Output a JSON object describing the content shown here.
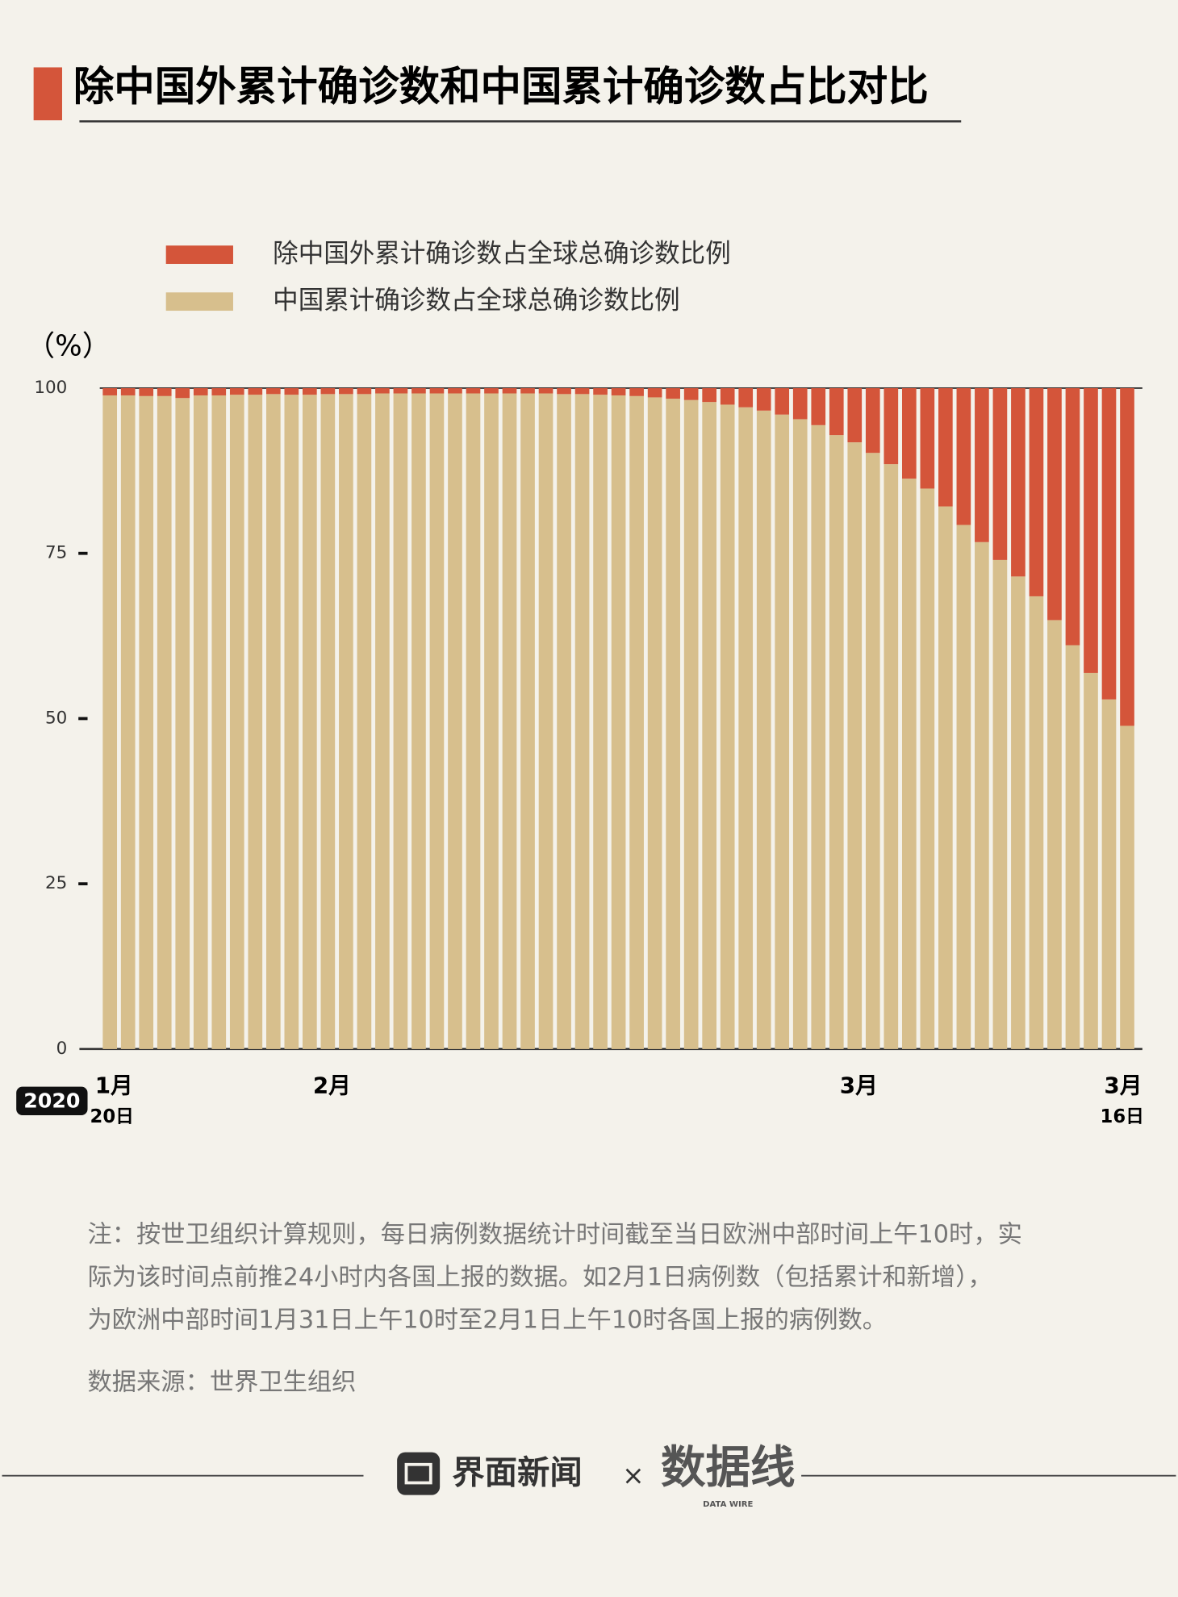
{
  "chart_data": {
    "type": "stacked_bar",
    "title": "除中国外累计确诊数和中国累计确诊数占比对比",
    "y_label": "（%）",
    "year_label": "2020",
    "categories": [
      "1月",
      null,
      null,
      null,
      null,
      null,
      null,
      null,
      null,
      null,
      null,
      null,
      "2月",
      null,
      null,
      null,
      null,
      null,
      null,
      null,
      null,
      null,
      null,
      null,
      null,
      null,
      null,
      null,
      null,
      null,
      null,
      null,
      null,
      null,
      null,
      null,
      null,
      null,
      null,
      null,
      null,
      "3月",
      null,
      null,
      null,
      null,
      null,
      null,
      null,
      null,
      null,
      null,
      null,
      null,
      null,
      null,
      "3月"
    ],
    "category_sublabels": [
      "20日",
      null,
      null,
      null,
      null,
      null,
      null,
      null,
      null,
      null,
      null,
      null,
      null,
      null,
      null,
      null,
      null,
      null,
      null,
      null,
      null,
      null,
      null,
      null,
      null,
      null,
      null,
      null,
      null,
      null,
      null,
      null,
      null,
      null,
      null,
      null,
      null,
      null,
      null,
      null,
      null,
      null,
      null,
      null,
      null,
      null,
      null,
      null,
      null,
      null,
      null,
      null,
      null,
      null,
      null,
      null,
      "16日"
    ],
    "series": [
      {
        "name": "除中国外累计确诊数占全球总确诊数比例",
        "color": "#d4553a",
        "values": [
          1.1,
          1.1,
          1.2,
          1.2,
          1.5,
          1.1,
          1.1,
          1.0,
          1.0,
          0.9,
          1.0,
          1.0,
          0.9,
          0.9,
          0.9,
          0.8,
          0.8,
          0.8,
          0.8,
          0.8,
          0.8,
          0.8,
          0.8,
          0.8,
          0.8,
          0.9,
          0.9,
          1.0,
          1.1,
          1.2,
          1.4,
          1.6,
          1.8,
          2.1,
          2.5,
          2.9,
          3.4,
          4.0,
          4.7,
          5.6,
          7.1,
          8.2,
          9.8,
          11.5,
          13.7,
          15.2,
          17.9,
          20.7,
          23.3,
          26.0,
          28.5,
          31.5,
          35.1,
          38.9,
          43.1,
          47.1,
          51.1
        ]
      },
      {
        "name": "中国累计确诊数占全球总确诊数比例",
        "color": "#d7bf8d",
        "values": [
          98.9,
          98.9,
          98.8,
          98.8,
          98.5,
          98.9,
          98.9,
          99.0,
          99.0,
          99.1,
          99.0,
          99.0,
          99.1,
          99.1,
          99.1,
          99.2,
          99.2,
          99.2,
          99.2,
          99.2,
          99.2,
          99.2,
          99.2,
          99.2,
          99.2,
          99.1,
          99.1,
          99.0,
          98.9,
          98.8,
          98.6,
          98.4,
          98.2,
          97.9,
          97.5,
          97.1,
          96.6,
          96.0,
          95.3,
          94.4,
          92.9,
          91.8,
          90.2,
          88.5,
          86.3,
          84.8,
          82.1,
          79.3,
          76.7,
          74.0,
          71.5,
          68.5,
          64.9,
          61.1,
          56.9,
          52.9,
          48.9
        ]
      }
    ],
    "ylim": [
      0,
      100
    ],
    "yticks": [
      0,
      25,
      50,
      75,
      100
    ],
    "grid": false,
    "legend": "top-left"
  },
  "notes": [
    "注：按世卫组织计算规则，每日病例数据统计时间截至当日欧洲中部时间上午10时，实",
    "际为该时间点前推24小时内各国上报的数据。如2月1日病例数（包括累计和新增），",
    "为欧洲中部时间1月31日上午10时至2月1日上午10时各国上报的病例数。"
  ],
  "source": "数据来源：世界卫生组织",
  "footer": {
    "brand": "界面新闻",
    "separator": "×",
    "partner": "数据线",
    "partner_sub": "DATA WIRE"
  }
}
